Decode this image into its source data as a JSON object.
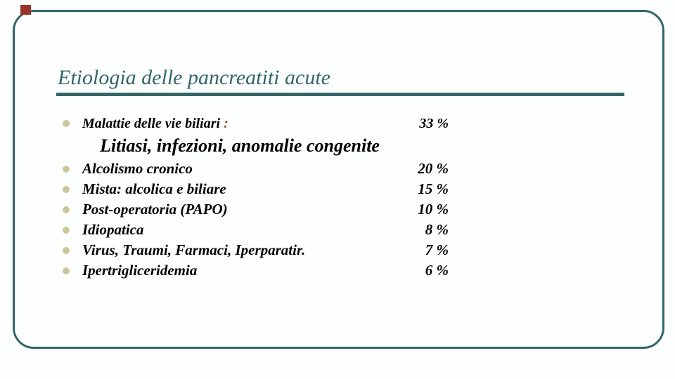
{
  "slide": {
    "title": "Etiologia delle pancreatiti acute",
    "list": {
      "main_item": {
        "label": "Malattie delle vie biliari",
        "colon_suffix": ":",
        "value": "33 %"
      },
      "sub_item": "Litiasi, infezioni, anomalie congenite",
      "items": [
        {
          "label": "Alcolismo cronico",
          "value": "20 %"
        },
        {
          "label": "Mista: alcolica e biliare",
          "value": "15 %"
        },
        {
          "label": "Post-operatoria (PAPO)",
          "value": "10 %"
        },
        {
          "label": "Idiopatica",
          "value": "8 %"
        },
        {
          "label": "Virus, Traumi, Farmaci, Iperparatir.",
          "value": "7 %"
        },
        {
          "label": "Ipertrigliceridemia",
          "value": "6 %"
        }
      ]
    },
    "colors": {
      "accent_teal": "#336666",
      "bullet_khaki": "#c9c89c",
      "red_square": "#9c332b",
      "colon_red": "#a1492f",
      "text": "#000000"
    }
  }
}
